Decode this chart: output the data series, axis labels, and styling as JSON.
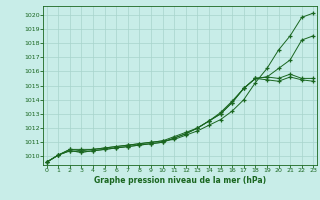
{
  "x": [
    0,
    1,
    2,
    3,
    4,
    5,
    6,
    7,
    8,
    9,
    10,
    11,
    12,
    13,
    14,
    15,
    16,
    17,
    18,
    19,
    20,
    21,
    22,
    23
  ],
  "line1": [
    1009.6,
    1010.1,
    1010.5,
    1010.4,
    1010.5,
    1010.6,
    1010.7,
    1010.8,
    1010.9,
    1011.0,
    1011.1,
    1011.2,
    1011.5,
    1011.8,
    1012.2,
    1012.6,
    1013.2,
    1014.0,
    1015.2,
    1016.2,
    1017.5,
    1018.5,
    1019.8,
    1020.1
  ],
  "line2": [
    1009.6,
    1010.1,
    1010.4,
    1010.3,
    1010.4,
    1010.5,
    1010.6,
    1010.7,
    1010.8,
    1010.9,
    1011.0,
    1011.3,
    1011.6,
    1012.0,
    1012.5,
    1013.0,
    1013.8,
    1014.8,
    1015.5,
    1015.6,
    1015.5,
    1015.8,
    1015.5,
    1015.5
  ],
  "line3": [
    1009.6,
    1010.1,
    1010.5,
    1010.5,
    1010.5,
    1010.6,
    1010.7,
    1010.8,
    1010.9,
    1011.0,
    1011.1,
    1011.4,
    1011.7,
    1012.0,
    1012.5,
    1013.1,
    1013.9,
    1014.8,
    1015.5,
    1015.6,
    1016.2,
    1016.8,
    1018.2,
    1018.5
  ],
  "line4": [
    1009.6,
    1010.1,
    1010.4,
    1010.3,
    1010.4,
    1010.5,
    1010.6,
    1010.7,
    1010.8,
    1010.9,
    1011.0,
    1011.3,
    1011.6,
    1012.0,
    1012.5,
    1013.0,
    1013.8,
    1014.8,
    1015.5,
    1015.4,
    1015.3,
    1015.6,
    1015.4,
    1015.3
  ],
  "bg_color": "#c8ede8",
  "grid_color": "#a8d4cc",
  "line_color": "#1a6620",
  "xlabel": "Graphe pression niveau de la mer (hPa)",
  "xlabel_color": "#1a6620",
  "tick_color": "#1a6620",
  "ylim": [
    1009.4,
    1020.6
  ],
  "xlim": [
    -0.3,
    23.3
  ],
  "yticks": [
    1010,
    1011,
    1012,
    1013,
    1014,
    1015,
    1016,
    1017,
    1018,
    1019,
    1020
  ],
  "xticks": [
    0,
    1,
    2,
    3,
    4,
    5,
    6,
    7,
    8,
    9,
    10,
    11,
    12,
    13,
    14,
    15,
    16,
    17,
    18,
    19,
    20,
    21,
    22,
    23
  ]
}
